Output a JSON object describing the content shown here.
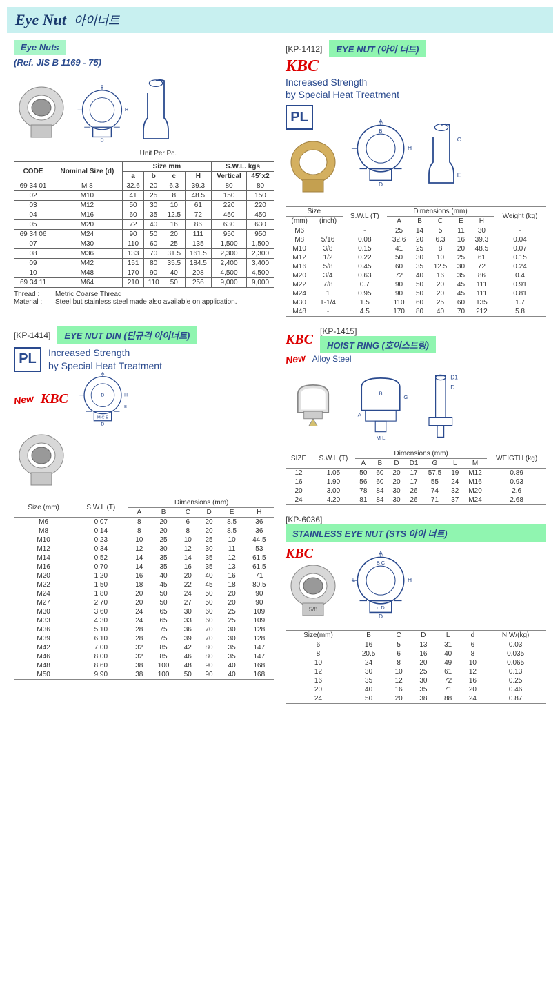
{
  "page_title": {
    "main": "Eye Nut",
    "sub": "아이너트"
  },
  "sec1": {
    "label": "Eye Nuts",
    "ref": "(Ref. JIS B 1169 - 75)",
    "unit": "Unit Per Pc.",
    "cols": [
      "CODE",
      "Nominal Size (d)",
      "a",
      "b",
      "c",
      "H",
      "Vertical",
      "45°x2"
    ],
    "group_size": "Size mm",
    "group_swl": "S.W.L. kgs",
    "rows": [
      [
        "69 34 01",
        "M 8",
        "32.6",
        "20",
        "6.3",
        "39.3",
        "80",
        "80"
      ],
      [
        "02",
        "M10",
        "41",
        "25",
        "8",
        "48.5",
        "150",
        "150"
      ],
      [
        "03",
        "M12",
        "50",
        "30",
        "10",
        "61",
        "220",
        "220"
      ],
      [
        "04",
        "M16",
        "60",
        "35",
        "12.5",
        "72",
        "450",
        "450"
      ],
      [
        "05",
        "M20",
        "72",
        "40",
        "16",
        "86",
        "630",
        "630"
      ],
      [
        "69 34 06",
        "M24",
        "90",
        "50",
        "20",
        "111",
        "950",
        "950"
      ],
      [
        "07",
        "M30",
        "110",
        "60",
        "25",
        "135",
        "1,500",
        "1,500"
      ],
      [
        "08",
        "M36",
        "133",
        "70",
        "31.5",
        "161.5",
        "2,300",
        "2,300"
      ],
      [
        "09",
        "M42",
        "151",
        "80",
        "35.5",
        "184.5",
        "2,400",
        "3,400"
      ],
      [
        "10",
        "M48",
        "170",
        "90",
        "40",
        "208",
        "4,500",
        "4,500"
      ],
      [
        "69 34 11",
        "M64",
        "210",
        "110",
        "50",
        "256",
        "9,000",
        "9,000"
      ]
    ],
    "break_rows": [
      5,
      10
    ],
    "note_thread_lbl": "Thread :",
    "note_thread": "Metric Coarse Thread",
    "note_material_lbl": "Material :",
    "note_material": "Steel but stainless steel made also available on application."
  },
  "sec2": {
    "code": "[KP-1412]",
    "label": "EYE NUT (아이 너트)",
    "brand": "KBC",
    "strength1": "Increased Strength",
    "strength2": "by Special Heat Treatment",
    "pl": "PL",
    "hdr_size": "Size",
    "hdr_swl": "S.W.L (T)",
    "hdr_dim": "Dimensions (mm)",
    "hdr_weight": "Weight (kg)",
    "hdr_mm": "(mm)",
    "hdr_inch": "(inch)",
    "cols": [
      "A",
      "B",
      "C",
      "E",
      "H"
    ],
    "rows": [
      [
        "M6",
        "",
        "-",
        "25",
        "14",
        "5",
        "11",
        "30",
        "-"
      ],
      [
        "M8",
        "5/16",
        "0.08",
        "32.6",
        "20",
        "6.3",
        "16",
        "39.3",
        "0.04"
      ],
      [
        "M10",
        "3/8",
        "0.15",
        "41",
        "25",
        "8",
        "20",
        "48.5",
        "0.07"
      ],
      [
        "M12",
        "1/2",
        "0.22",
        "50",
        "30",
        "10",
        "25",
        "61",
        "0.15"
      ],
      [
        "M16",
        "5/8",
        "0.45",
        "60",
        "35",
        "12.5",
        "30",
        "72",
        "0.24"
      ],
      [
        "M20",
        "3/4",
        "0.63",
        "72",
        "40",
        "16",
        "35",
        "86",
        "0.4"
      ],
      [
        "M22",
        "7/8",
        "0.7",
        "90",
        "50",
        "20",
        "45",
        "111",
        "0.91"
      ],
      [
        "M24",
        "1",
        "0.95",
        "90",
        "50",
        "20",
        "45",
        "111",
        "0.81"
      ],
      [
        "M30",
        "1-1/4",
        "1.5",
        "110",
        "60",
        "25",
        "60",
        "135",
        "1.7"
      ],
      [
        "M48",
        "-",
        "4.5",
        "170",
        "80",
        "40",
        "70",
        "212",
        "5.8"
      ]
    ]
  },
  "sec3": {
    "code": "[KP-1414]",
    "label": "EYE NUT DIN (딘규격 아이너트)",
    "pl": "PL",
    "strength1": "Increased Strength",
    "strength2": "by Special Heat Treatment",
    "new": "New",
    "brand": "KBC",
    "hdr_size": "Size (mm)",
    "hdr_swl": "S.W.L (T)",
    "hdr_dim": "Dimensions (mm)",
    "cols": [
      "A",
      "B",
      "C",
      "D",
      "E",
      "H"
    ],
    "rows": [
      [
        "M6",
        "0.07",
        "8",
        "20",
        "6",
        "20",
        "8.5",
        "36"
      ],
      [
        "M8",
        "0.14",
        "8",
        "20",
        "8",
        "20",
        "8.5",
        "36"
      ],
      [
        "M10",
        "0.23",
        "10",
        "25",
        "10",
        "25",
        "10",
        "44.5"
      ],
      [
        "M12",
        "0.34",
        "12",
        "30",
        "12",
        "30",
        "11",
        "53"
      ],
      [
        "M14",
        "0.52",
        "14",
        "35",
        "14",
        "35",
        "12",
        "61.5"
      ],
      [
        "M16",
        "0.70",
        "14",
        "35",
        "16",
        "35",
        "13",
        "61.5"
      ],
      [
        "M20",
        "1.20",
        "16",
        "40",
        "20",
        "40",
        "16",
        "71"
      ],
      [
        "M22",
        "1.50",
        "18",
        "45",
        "22",
        "45",
        "18",
        "80.5"
      ],
      [
        "M24",
        "1.80",
        "20",
        "50",
        "24",
        "50",
        "20",
        "90"
      ],
      [
        "M27",
        "2.70",
        "20",
        "50",
        "27",
        "50",
        "20",
        "90"
      ],
      [
        "M30",
        "3.60",
        "24",
        "65",
        "30",
        "60",
        "25",
        "109"
      ],
      [
        "M33",
        "4.30",
        "24",
        "65",
        "33",
        "60",
        "25",
        "109"
      ],
      [
        "M36",
        "5.10",
        "28",
        "75",
        "36",
        "70",
        "30",
        "128"
      ],
      [
        "M39",
        "6.10",
        "28",
        "75",
        "39",
        "70",
        "30",
        "128"
      ],
      [
        "M42",
        "7.00",
        "32",
        "85",
        "42",
        "80",
        "35",
        "147"
      ],
      [
        "M46",
        "8.00",
        "32",
        "85",
        "46",
        "80",
        "35",
        "147"
      ],
      [
        "M48",
        "8.60",
        "38",
        "100",
        "48",
        "90",
        "40",
        "168"
      ],
      [
        "M50",
        "9.90",
        "38",
        "100",
        "50",
        "90",
        "40",
        "168"
      ]
    ]
  },
  "sec4": {
    "brand": "KBC",
    "code": "[KP-1415]",
    "label": "HOIST RING (호이스트링)",
    "new": "New",
    "alloy": "Alloy Steel",
    "hdr_size": "SIZE",
    "hdr_swl": "S.W.L (T)",
    "hdr_dim": "Dimensions (mm)",
    "hdr_weight": "WEIGTH (kg)",
    "cols": [
      "A",
      "B",
      "D",
      "D1",
      "G",
      "L",
      "M"
    ],
    "rows": [
      [
        "12",
        "1.05",
        "50",
        "60",
        "20",
        "17",
        "57.5",
        "19",
        "M12",
        "0.89"
      ],
      [
        "16",
        "1.90",
        "56",
        "60",
        "20",
        "17",
        "55",
        "24",
        "M16",
        "0.93"
      ],
      [
        "20",
        "3.00",
        "78",
        "84",
        "30",
        "26",
        "74",
        "32",
        "M20",
        "2.6"
      ],
      [
        "24",
        "4.20",
        "81",
        "84",
        "30",
        "26",
        "71",
        "37",
        "M24",
        "2.68"
      ]
    ]
  },
  "sec5": {
    "code": "[KP-6036]",
    "label": "STAINLESS EYE NUT (STS 아이 너트)",
    "brand": "KBC",
    "hdr_size": "Size(mm)",
    "hdr_nw": "N.W/(kg)",
    "cols": [
      "B",
      "C",
      "D",
      "L",
      "d"
    ],
    "rows": [
      [
        "6",
        "16",
        "5",
        "13",
        "31",
        "6",
        "0.03"
      ],
      [
        "8",
        "20.5",
        "6",
        "16",
        "40",
        "8",
        "0.035"
      ],
      [
        "10",
        "24",
        "8",
        "20",
        "49",
        "10",
        "0.065"
      ],
      [
        "12",
        "30",
        "10",
        "25",
        "61",
        "12",
        "0.13"
      ],
      [
        "16",
        "35",
        "12",
        "30",
        "72",
        "16",
        "0.25"
      ],
      [
        "20",
        "40",
        "16",
        "35",
        "71",
        "20",
        "0.46"
      ],
      [
        "24",
        "50",
        "20",
        "38",
        "88",
        "24",
        "0.87"
      ]
    ]
  }
}
